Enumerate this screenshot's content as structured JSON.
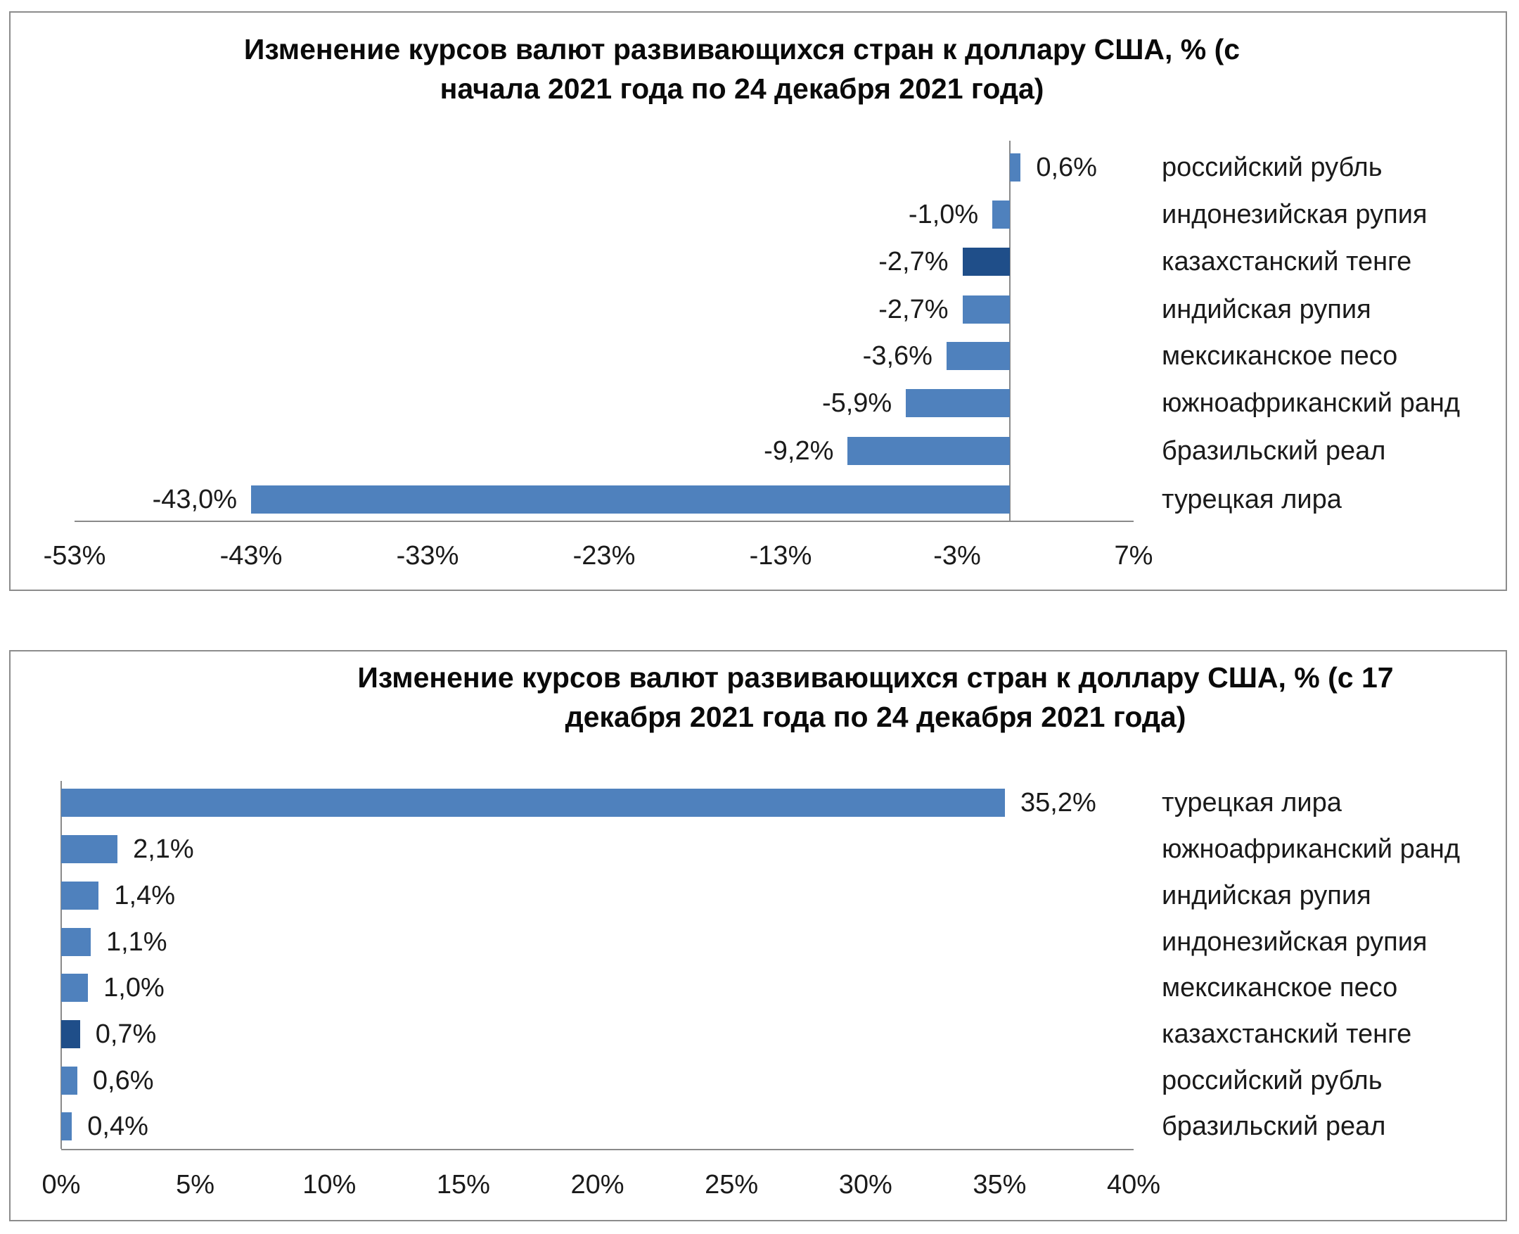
{
  "colors": {
    "bar": "#4F81BD",
    "bar_highlight": "#1F4E89",
    "axis": "#8a8a8a",
    "border": "#8c8c8c"
  },
  "chart_data": [
    {
      "type": "bar",
      "orientation": "horizontal",
      "title": "Изменение курсов валют развивающихся стран к доллару США, % (с начала 2021 года по 24 декабря 2021 года)",
      "title_lines": [
        "Изменение курсов валют развивающихся стран к доллару США, % (с",
        "начала 2021 года по 24 декабря 2021 года)"
      ],
      "categories": [
        "российский рубль",
        "индонезийская рупия",
        "казахстанский тенге",
        "индийская рупия",
        "мексиканское песо",
        "южноафриканский ранд",
        "бразильский реал",
        "турецкая лира"
      ],
      "values": [
        0.6,
        -1.0,
        -2.7,
        -2.7,
        -3.6,
        -5.9,
        -9.2,
        -43.0
      ],
      "value_labels": [
        "0,6%",
        "-1,0%",
        "-2,7%",
        "-2,7%",
        "-3,6%",
        "-5,9%",
        "-9,2%",
        "-43,0%"
      ],
      "highlight": [
        false,
        false,
        true,
        false,
        false,
        false,
        false,
        false
      ],
      "xlim": [
        -53,
        7
      ],
      "xticks": [
        "-53%",
        "-43%",
        "-33%",
        "-23%",
        "-13%",
        "-3%",
        "7%"
      ],
      "xlabel": "",
      "ylabel": "",
      "grid": false,
      "legend": "none"
    },
    {
      "type": "bar",
      "orientation": "horizontal",
      "title": "Изменение курсов валют развивающихся стран к доллару США, % (с 17 декабря 2021 года по 24 декабря 2021 года)",
      "title_lines": [
        "Изменение курсов валют развивающихся стран к доллару США, % (с 17",
        "декабря 2021 года по 24 декабря 2021 года)"
      ],
      "categories": [
        "турецкая лира",
        "южноафриканский ранд",
        "индийская рупия",
        "индонезийская рупия",
        "мексиканское песо",
        "казахстанский тенге",
        "российский рубль",
        "бразильский реал"
      ],
      "values": [
        35.2,
        2.1,
        1.4,
        1.1,
        1.0,
        0.7,
        0.6,
        0.4
      ],
      "value_labels": [
        "35,2%",
        "2,1%",
        "1,4%",
        "1,1%",
        "1,0%",
        "0,7%",
        "0,6%",
        "0,4%"
      ],
      "highlight": [
        false,
        false,
        false,
        false,
        false,
        true,
        false,
        false
      ],
      "xlim": [
        0,
        40
      ],
      "xticks": [
        "0%",
        "5%",
        "10%",
        "15%",
        "20%",
        "25%",
        "30%",
        "35%",
        "40%"
      ],
      "xlabel": "",
      "ylabel": "",
      "grid": false,
      "legend": "none"
    }
  ]
}
